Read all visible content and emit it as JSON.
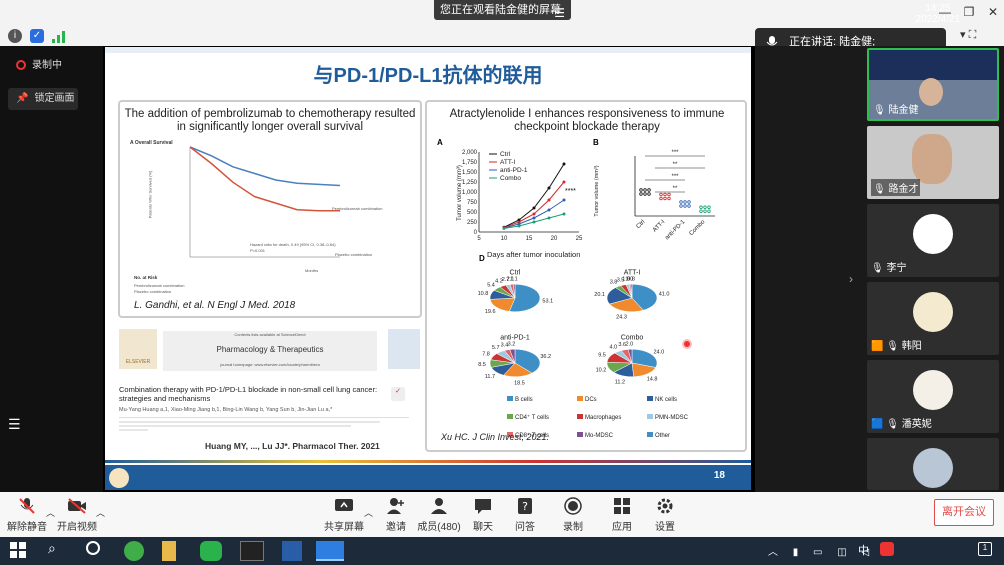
{
  "banner": {
    "text": "您正在观看陆金健的屏幕"
  },
  "speaking": {
    "text": "正在讲话: 陆金健;"
  },
  "left_panel": {
    "recording": "录制中",
    "lock": "锁定画面"
  },
  "slide": {
    "title": "与PD-1/PD-L1抗体的联用",
    "page": "18",
    "left_panel": {
      "heading": "The addition of pembrolizumab to chemotherapy resulted in significantly longer overall survival",
      "chart_label": "A  Overall Survival",
      "ylabel": "Patients Who Survived (%)",
      "xlabel": "Months",
      "legend_pembro": "Pembrolizumab combination",
      "legend_placebo": "Placebo combination",
      "hazard": "Hazard ratio for death, 0.49 (95% CI, 0.38–0.64)",
      "pvalue": "P<0.001",
      "at_risk": "No. at Risk",
      "row_pembro": "Pembrolizumab combination",
      "row_placebo": "Placebo combination",
      "citation": "L. Gandhi, et al. N Engl J Med. 2018",
      "journal_contents": "Contents lists available at ScienceDirect",
      "journal_name": "Pharmacology & Therapeutics",
      "journal_home": "journal homepage: www.elsevier.com/locate/pharmthera",
      "elsevier": "ELSEVIER",
      "paper_title": "Combination therapy with PD-1/PD-L1 blockade in non-small cell lung cancer: strategies and mechanisms",
      "authors": "Mu-Yang Huang a,1, Xiao-Ming Jiang b,1, Bing-Lin Wang b, Yang Sun b, Jin-Jian Lu a,*",
      "citation2": "Huang MY, ..., Lu JJ*. Pharmacol Ther. 2021"
    },
    "right_panel": {
      "heading": "Atractylenolide I enhances responsiveness to immune checkpoint blockade therapy",
      "panel_a": "A",
      "panel_b": "B",
      "panel_d": "D",
      "ylabel_a": "Tumor volume (mm³)",
      "xlabel_a": "Days after tumor inoculation",
      "ylabel_b": "Tumor volume (mm³)",
      "sig_a": "****",
      "sig_b": [
        "***",
        "**",
        "***",
        "**"
      ],
      "pie_titles": [
        "Ctrl",
        "ATT-I",
        "anti-PD-1",
        "Combo"
      ],
      "pie_legend": [
        "B cells",
        "DCs",
        "NK cells",
        "CD4⁺ T cells",
        "Macrophages",
        "PMN-MDSC",
        "CD8⁺ T cells",
        "Mo-MDSC",
        "Other"
      ],
      "citation": "Xu HC. J Clin Invest, 2021."
    }
  },
  "participants": [
    {
      "name": "陆金健"
    },
    {
      "name": "路金才"
    },
    {
      "name": "李宁"
    },
    {
      "name": "韩阳"
    },
    {
      "name": "潘英妮"
    },
    {
      "name": ""
    }
  ],
  "toolbar": {
    "unmute": "解除静音",
    "start_video": "开启视频",
    "share_screen": "共享屏幕",
    "invite": "邀请",
    "members": "成员(480)",
    "chat": "聊天",
    "qa": "问答",
    "record": "录制",
    "apps": "应用",
    "settings": "设置",
    "leave": "离开会议"
  },
  "taskbar": {
    "time": "14:25",
    "date": "2022/4/21",
    "ime": "中"
  },
  "colors": {
    "accent": "#1f5c99",
    "leave": "#e24b4b",
    "ctrl": "#111111",
    "atti": "#d62728",
    "antipd1": "#2c5fb6",
    "combo": "#1a9e77"
  },
  "chart_data": [
    {
      "type": "line",
      "title": "Overall Survival",
      "xlabel": "Months",
      "ylabel": "Patients Who Survived (%)",
      "x": [
        0,
        3,
        6,
        9,
        12,
        15,
        18,
        21
      ],
      "series": [
        {
          "name": "Pembrolizumab combination",
          "values": [
            100,
            92,
            82,
            76,
            70,
            67,
            66,
            65
          ]
        },
        {
          "name": "Placebo combination",
          "values": [
            100,
            85,
            68,
            55,
            49,
            43,
            42,
            42
          ]
        }
      ],
      "ylim": [
        0,
        100
      ]
    },
    {
      "type": "line",
      "xlabel": "Days after tumor inoculation",
      "ylabel": "Tumor volume (mm³)",
      "x": [
        10,
        13,
        16,
        19,
        22
      ],
      "series": [
        {
          "name": "Ctrl",
          "values": [
            120,
            300,
            600,
            1100,
            1700
          ]
        },
        {
          "name": "ATT-I",
          "values": [
            110,
            250,
            450,
            800,
            1250
          ]
        },
        {
          "name": "anti-PD-1",
          "values": [
            100,
            200,
            350,
            550,
            800
          ]
        },
        {
          "name": "Combo",
          "values": [
            90,
            150,
            250,
            350,
            450
          ]
        }
      ],
      "xlim": [
        5,
        25
      ],
      "ylim": [
        0,
        2000
      ],
      "yticks": [
        "0",
        "250",
        "500",
        "750",
        "1,000",
        "1,250",
        "1,500",
        "1,750",
        "2,000"
      ],
      "xticks": [
        "5",
        "10",
        "15",
        "20",
        "25"
      ]
    },
    {
      "type": "scatter",
      "categories": [
        "Ctrl",
        "ATT-I",
        "anti-PD-1",
        "Combo"
      ],
      "values": [
        1600,
        1300,
        800,
        450
      ],
      "ylim": [
        0,
        4000
      ]
    },
    {
      "type": "pie",
      "title": "Ctrl",
      "values": [
        53.1,
        19.6,
        10.8,
        5.4,
        4.2,
        2.7,
        2.1,
        1.1
      ],
      "labels": [
        "53.1",
        "19.6",
        "10.8",
        "5.4",
        "4.2",
        "2.7",
        "2.1",
        "1.1"
      ]
    },
    {
      "type": "pie",
      "title": "ATT-I",
      "values": [
        41.0,
        24.3,
        20.1,
        3.8,
        3.5,
        1.9,
        1.0,
        0.8
      ],
      "labels": [
        "41.0",
        "24.3",
        "20.1",
        "3.8",
        "3.5",
        "1.9",
        "1.0",
        "0.8"
      ]
    },
    {
      "type": "pie",
      "title": "anti-PD-1",
      "values": [
        36.2,
        18.5,
        11.7,
        8.5,
        7.8,
        5.7,
        3.4,
        3.2
      ],
      "labels": [
        "36.2",
        "18.5",
        "11.7",
        "8.5",
        "7.8",
        "5.7",
        "3.4",
        "3.2"
      ]
    },
    {
      "type": "pie",
      "title": "Combo",
      "values": [
        24.0,
        14.8,
        11.2,
        10.2,
        9.5,
        4.0,
        3.6,
        2.0
      ],
      "labels": [
        "24.0",
        "14.8",
        "11.2",
        "10.2",
        "9.5",
        "4.0",
        "3.6",
        "2.0"
      ]
    }
  ]
}
